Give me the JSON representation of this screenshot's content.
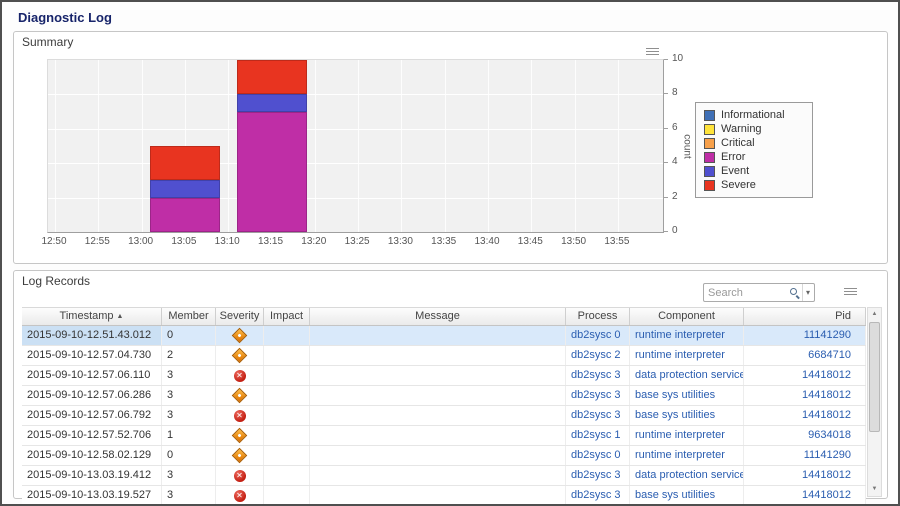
{
  "window": {
    "title": "Diagnostic Log"
  },
  "summary_panel": {
    "title": "Summary"
  },
  "chart_data": {
    "type": "bar",
    "stacked": true,
    "title": "",
    "xlabel": "",
    "ylabel": "count",
    "ylim": [
      0,
      10
    ],
    "y_ticks": [
      0,
      2,
      4,
      6,
      8,
      10
    ],
    "x_ticks": [
      "12:50",
      "12:55",
      "13:00",
      "13:05",
      "13:10",
      "13:15",
      "13:20",
      "13:25",
      "13:30",
      "13:35",
      "13:40",
      "13:45",
      "13:50",
      "13:55"
    ],
    "grid": true,
    "legend_position": "right",
    "legend": [
      {
        "label": "Informational",
        "color": "#3f6fb5"
      },
      {
        "label": "Warning",
        "color": "#ffe33a"
      },
      {
        "label": "Critical",
        "color": "#f7a04a"
      },
      {
        "label": "Error",
        "color": "#bf2ea6"
      },
      {
        "label": "Event",
        "color": "#5050cf"
      },
      {
        "label": "Severe",
        "color": "#e83420"
      }
    ],
    "series_colors": {
      "Error": "#bf2ea6",
      "Event": "#5050cf",
      "Severe": "#e83420"
    },
    "bars": [
      {
        "x": "13:05",
        "total": 5,
        "segments": [
          {
            "name": "Error",
            "value": 2
          },
          {
            "name": "Event",
            "value": 1
          },
          {
            "name": "Severe",
            "value": 2
          }
        ]
      },
      {
        "x": "13:15",
        "total": 10,
        "segments": [
          {
            "name": "Error",
            "value": 7
          },
          {
            "name": "Event",
            "value": 1
          },
          {
            "name": "Severe",
            "value": 2
          }
        ]
      }
    ]
  },
  "log_panel": {
    "title": "Log Records",
    "search": {
      "placeholder": "Search",
      "value": ""
    },
    "columns": [
      "Timestamp",
      "Member",
      "Severity",
      "Impact",
      "Message",
      "Process",
      "Component",
      "Pid"
    ],
    "sort": {
      "column": "Timestamp",
      "direction": "asc"
    },
    "rows": [
      {
        "timestamp": "2015-09-10-12.51.43.012",
        "member": "0",
        "severity": "warning",
        "impact": "",
        "message": "",
        "process": "db2sysc 0",
        "component": "runtime interpreter",
        "pid": "11141290",
        "selected": true
      },
      {
        "timestamp": "2015-09-10-12.57.04.730",
        "member": "2",
        "severity": "warning",
        "impact": "",
        "message": "",
        "process": "db2sysc 2",
        "component": "runtime interpreter",
        "pid": "6684710",
        "selected": false
      },
      {
        "timestamp": "2015-09-10-12.57.06.110",
        "member": "3",
        "severity": "error",
        "impact": "",
        "message": "",
        "process": "db2sysc 3",
        "component": "data protection services",
        "pid": "14418012",
        "selected": false
      },
      {
        "timestamp": "2015-09-10-12.57.06.286",
        "member": "3",
        "severity": "warning",
        "impact": "",
        "message": "",
        "process": "db2sysc 3",
        "component": "base sys utilities",
        "pid": "14418012",
        "selected": false
      },
      {
        "timestamp": "2015-09-10-12.57.06.792",
        "member": "3",
        "severity": "error",
        "impact": "",
        "message": "",
        "process": "db2sysc 3",
        "component": "base sys utilities",
        "pid": "14418012",
        "selected": false
      },
      {
        "timestamp": "2015-09-10-12.57.52.706",
        "member": "1",
        "severity": "warning",
        "impact": "",
        "message": "",
        "process": "db2sysc 1",
        "component": "runtime interpreter",
        "pid": "9634018",
        "selected": false
      },
      {
        "timestamp": "2015-09-10-12.58.02.129",
        "member": "0",
        "severity": "warning",
        "impact": "",
        "message": "",
        "process": "db2sysc 0",
        "component": "runtime interpreter",
        "pid": "11141290",
        "selected": false
      },
      {
        "timestamp": "2015-09-10-13.03.19.412",
        "member": "3",
        "severity": "error",
        "impact": "",
        "message": "",
        "process": "db2sysc 3",
        "component": "data protection services",
        "pid": "14418012",
        "selected": false
      },
      {
        "timestamp": "2015-09-10-13.03.19.527",
        "member": "3",
        "severity": "error",
        "impact": "",
        "message": "",
        "process": "db2sysc 3",
        "component": "base sys utilities",
        "pid": "14418012",
        "selected": false
      }
    ]
  }
}
